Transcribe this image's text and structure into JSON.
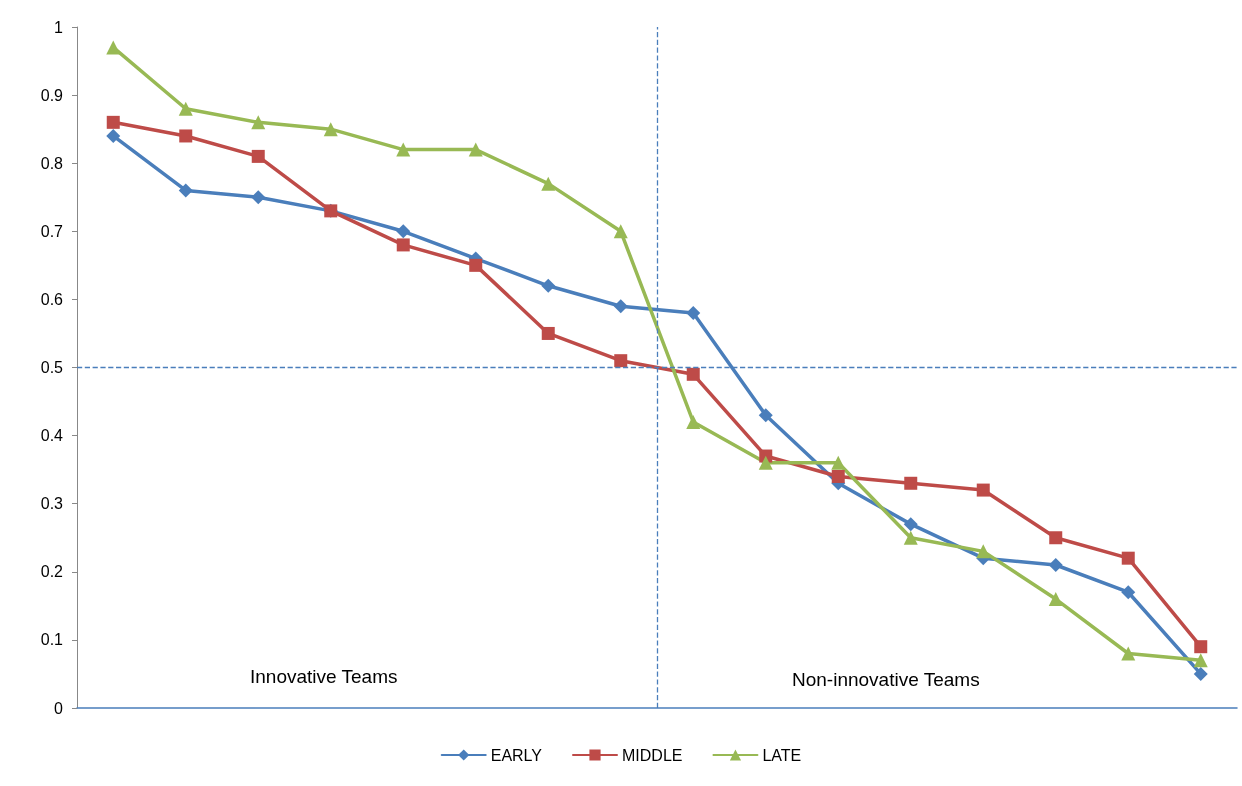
{
  "chart_data": {
    "type": "line",
    "categories": [
      null,
      null,
      null,
      null,
      null,
      null,
      null,
      null,
      null,
      null,
      null,
      null,
      null,
      null,
      null,
      null
    ],
    "series": [
      {
        "name": "EARLY",
        "color": "#4a7ebb",
        "marker": "diamond",
        "values": [
          0.84,
          0.76,
          0.75,
          0.73,
          0.7,
          0.66,
          0.62,
          0.59,
          0.58,
          0.43,
          0.33,
          0.27,
          0.22,
          0.21,
          0.17,
          0.05
        ]
      },
      {
        "name": "MIDDLE",
        "color": "#be4b48",
        "marker": "square",
        "values": [
          0.86,
          0.84,
          0.81,
          0.73,
          0.68,
          0.65,
          0.55,
          0.51,
          0.49,
          0.37,
          0.34,
          0.33,
          0.32,
          0.25,
          0.22,
          0.09
        ]
      },
      {
        "name": "LATE",
        "color": "#98b954",
        "marker": "triangle",
        "values": [
          0.97,
          0.88,
          0.86,
          0.85,
          0.82,
          0.82,
          0.77,
          0.7,
          0.42,
          0.36,
          0.36,
          0.25,
          0.23,
          0.16,
          0.08,
          0.07
        ]
      }
    ],
    "ylim": [
      0,
      1
    ],
    "yticks": [
      0,
      0.1,
      0.2,
      0.3,
      0.4,
      0.5,
      0.6,
      0.7,
      0.8,
      0.9,
      1
    ],
    "ref_lines": [
      {
        "axis": "y",
        "value": 0.5,
        "color": "#4a7ebb",
        "line_style": "dashed"
      }
    ],
    "annotations": [
      "Innovative Teams",
      "Non-innovative Teams"
    ],
    "legend": "bottom",
    "grid": false,
    "line_style": "solid",
    "tick_labels": "y"
  }
}
